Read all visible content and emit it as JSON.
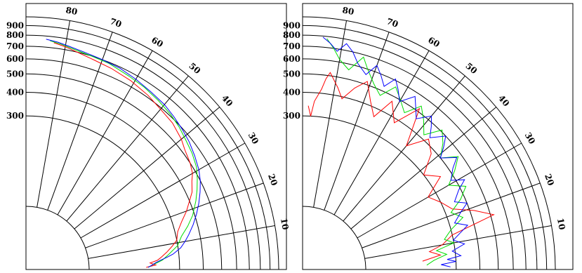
{
  "chart_data": [
    {
      "type": "polar-line",
      "angular_axis": {
        "unit": "degrees",
        "range": [
          0,
          90
        ],
        "ticks": [
          10,
          20,
          30,
          40,
          50,
          60,
          70,
          80
        ]
      },
      "radial_axis": {
        "scale": "log",
        "range": [
          100,
          1000
        ],
        "ticks": [
          300,
          400,
          500,
          600,
          700,
          800,
          900
        ]
      },
      "series": [
        {
          "color": "#ff0000",
          "points": [
            [
              83,
              745
            ],
            [
              80,
              725
            ],
            [
              76,
              695
            ],
            [
              72,
              675
            ],
            [
              67,
              660
            ],
            [
              61,
              640
            ],
            [
              55,
              615
            ],
            [
              50,
              590
            ],
            [
              45,
              575
            ],
            [
              40,
              545
            ],
            [
              37,
              520
            ],
            [
              33,
              500
            ],
            [
              30,
              480
            ],
            [
              28,
              455
            ],
            [
              25,
              430
            ],
            [
              20,
              370
            ],
            [
              17,
              335
            ],
            [
              14,
              310
            ],
            [
              11,
              300
            ],
            [
              9,
              280
            ],
            [
              7,
              260
            ],
            [
              5,
              240
            ],
            [
              4,
              230
            ],
            [
              3,
              210
            ],
            [
              2,
              225
            ],
            [
              1,
              200
            ]
          ]
        },
        {
          "color": "#00dd00",
          "points": [
            [
              84,
              760
            ],
            [
              81,
              740
            ],
            [
              77,
              715
            ],
            [
              73,
              700
            ],
            [
              68,
              690
            ],
            [
              62,
              665
            ],
            [
              57,
              650
            ],
            [
              52,
              630
            ],
            [
              47,
              610
            ],
            [
              43,
              590
            ],
            [
              39,
              565
            ],
            [
              35,
              545
            ],
            [
              31,
              520
            ],
            [
              28,
              490
            ],
            [
              25,
              460
            ],
            [
              22,
              430
            ],
            [
              18,
              390
            ],
            [
              15,
              355
            ],
            [
              12,
              320
            ],
            [
              9,
              300
            ],
            [
              6,
              265
            ],
            [
              4,
              245
            ],
            [
              3,
              230
            ],
            [
              2,
              215
            ],
            [
              1,
              205
            ]
          ]
        },
        {
          "color": "#0000ff",
          "points": [
            [
              85,
              770
            ],
            [
              82,
              755
            ],
            [
              79,
              735
            ],
            [
              75,
              715
            ],
            [
              70,
              700
            ],
            [
              65,
              690
            ],
            [
              60,
              670
            ],
            [
              55,
              650
            ],
            [
              50,
              635
            ],
            [
              46,
              615
            ],
            [
              42,
              595
            ],
            [
              38,
              575
            ],
            [
              34,
              550
            ],
            [
              30,
              525
            ],
            [
              27,
              500
            ],
            [
              24,
              470
            ],
            [
              21,
              440
            ],
            [
              18,
              410
            ],
            [
              15,
              380
            ],
            [
              12,
              350
            ],
            [
              10,
              330
            ],
            [
              8,
              310
            ],
            [
              6,
              280
            ],
            [
              5,
              260
            ],
            [
              4,
              240
            ],
            [
              3,
              225
            ],
            [
              2,
              215
            ],
            [
              1,
              205
            ]
          ]
        }
      ]
    },
    {
      "type": "polar-line",
      "angular_axis": {
        "unit": "degrees",
        "range": [
          0,
          90
        ],
        "ticks": [
          10,
          20,
          30,
          40,
          50,
          60,
          70,
          80
        ]
      },
      "radial_axis": {
        "scale": "log",
        "range": [
          100,
          1000
        ],
        "ticks": [
          300,
          400,
          500,
          600,
          700,
          800,
          900
        ]
      },
      "series": [
        {
          "color": "#ff0000",
          "points": [
            [
              88,
              340
            ],
            [
              87,
              300
            ],
            [
              86,
              360
            ],
            [
              84,
              420
            ],
            [
              83,
              480
            ],
            [
              82,
              520
            ],
            [
              79,
              440
            ],
            [
              77,
              390
            ],
            [
              74,
              460
            ],
            [
              71,
              520
            ],
            [
              68,
              420
            ],
            [
              65,
              360
            ],
            [
              62,
              470
            ],
            [
              58,
              380
            ],
            [
              54,
              520
            ],
            [
              50,
              330
            ],
            [
              46,
              420
            ],
            [
              42,
              380
            ],
            [
              38,
              300
            ],
            [
              34,
              350
            ],
            [
              30,
              270
            ],
            [
              26,
              300
            ],
            [
              22,
              330
            ],
            [
              19,
              420
            ],
            [
              16,
              520
            ],
            [
              13,
              300
            ],
            [
              10,
              260
            ],
            [
              8,
              220
            ],
            [
              6,
              250
            ],
            [
              4,
              200
            ]
          ]
        },
        {
          "color": "#00dd00",
          "points": [
            [
              84,
              780
            ],
            [
              82,
              700
            ],
            [
              80,
              620
            ],
            [
              77,
              560
            ],
            [
              74,
              680
            ],
            [
              72,
              600
            ],
            [
              69,
              520
            ],
            [
              66,
              470
            ],
            [
              63,
              560
            ],
            [
              60,
              500
            ],
            [
              57,
              450
            ],
            [
              54,
              540
            ],
            [
              51,
              480
            ],
            [
              48,
              420
            ],
            [
              45,
              510
            ],
            [
              42,
              460
            ],
            [
              39,
              400
            ],
            [
              36,
              480
            ],
            [
              33,
              420
            ],
            [
              30,
              360
            ],
            [
              27,
              430
            ],
            [
              24,
              380
            ],
            [
              21,
              320
            ],
            [
              18,
              360
            ],
            [
              15,
              300
            ],
            [
              12,
              270
            ],
            [
              10,
              300
            ],
            [
              8,
              240
            ],
            [
              6,
              270
            ],
            [
              4,
              230
            ],
            [
              2,
              210
            ]
          ]
        },
        {
          "color": "#0000ff",
          "points": [
            [
              85,
              790
            ],
            [
              83,
              740
            ],
            [
              81,
              680
            ],
            [
              79,
              760
            ],
            [
              77,
              700
            ],
            [
              75,
              620
            ],
            [
              72,
              560
            ],
            [
              70,
              650
            ],
            [
              68,
              590
            ],
            [
              66,
              530
            ],
            [
              64,
              610
            ],
            [
              62,
              550
            ],
            [
              60,
              490
            ],
            [
              57,
              570
            ],
            [
              55,
              510
            ],
            [
              53,
              460
            ],
            [
              50,
              530
            ],
            [
              48,
              480
            ],
            [
              46,
              430
            ],
            [
              43,
              500
            ],
            [
              41,
              450
            ],
            [
              39,
              400
            ],
            [
              36,
              470
            ],
            [
              34,
              420
            ],
            [
              31,
              380
            ],
            [
              29,
              440
            ],
            [
              27,
              390
            ],
            [
              24,
              350
            ],
            [
              22,
              400
            ],
            [
              20,
              360
            ],
            [
              17,
              320
            ],
            [
              15,
              370
            ],
            [
              13,
              330
            ],
            [
              11,
              300
            ],
            [
              9,
              340
            ],
            [
              7,
              290
            ],
            [
              5,
              320
            ],
            [
              4,
              270
            ],
            [
              3,
              300
            ],
            [
              2,
              250
            ],
            [
              1,
              280
            ]
          ]
        }
      ]
    }
  ]
}
